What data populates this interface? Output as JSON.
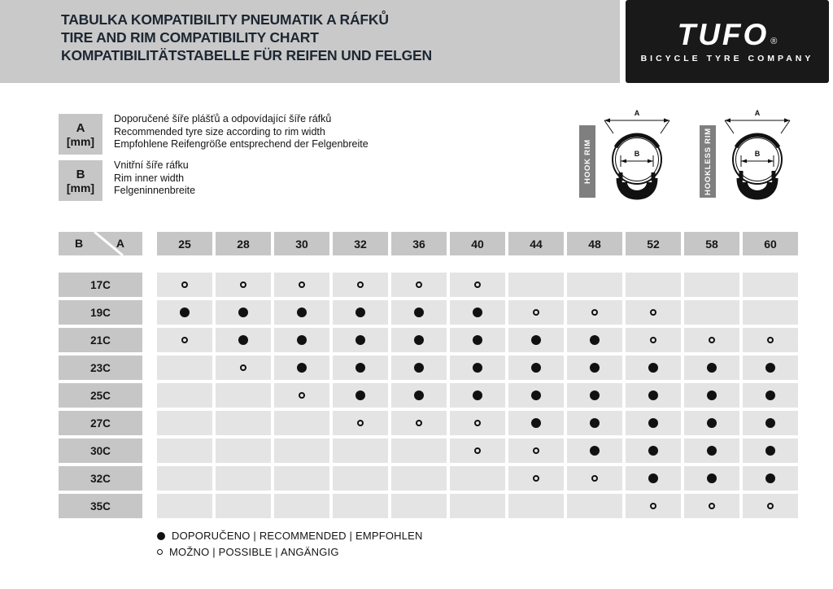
{
  "header": {
    "title_lines": [
      "TABULKA KOMPATIBILITY PNEUMATIK A RÁFKŮ",
      "TIRE AND RIM COMPATIBILITY CHART",
      "KOMPATIBILITÄTSTABELLE FÜR REIFEN UND FELGEN"
    ],
    "logo": {
      "brand": "TUFO",
      "registered": "®",
      "tagline": "BICYCLE TYRE COMPANY"
    }
  },
  "legend": {
    "items": [
      {
        "symbol": "A",
        "unit": "[mm]",
        "lines": [
          "Doporučené šíře plášťů a odpovídající šíře ráfků",
          "Recommended tyre size according to rim width",
          "Empfohlene Reifengröße entsprechend der Felgenbreite"
        ]
      },
      {
        "symbol": "B",
        "unit": "[mm]",
        "lines": [
          "Vnitřní šíře ráfku",
          "Rim inner width",
          "Felgeninnenbreite"
        ]
      }
    ]
  },
  "diagrams": [
    {
      "label": "HOOK RIM",
      "dim_a": "A",
      "dim_b": "B"
    },
    {
      "label": "HOOKLESS RIM",
      "dim_a": "A",
      "dim_b": "B"
    }
  ],
  "table": {
    "corner": {
      "left": "B",
      "right": "A"
    },
    "columns": [
      "25",
      "28",
      "30",
      "32",
      "36",
      "40",
      "44",
      "48",
      "52",
      "58",
      "60"
    ],
    "rows": [
      {
        "label": "17C",
        "cells": [
          "o",
          "o",
          "o",
          "o",
          "o",
          "o",
          "",
          "",
          "",
          "",
          ""
        ]
      },
      {
        "label": "19C",
        "cells": [
          "f",
          "f",
          "f",
          "f",
          "f",
          "f",
          "o",
          "o",
          "o",
          "",
          ""
        ]
      },
      {
        "label": "21C",
        "cells": [
          "o",
          "f",
          "f",
          "f",
          "f",
          "f",
          "f",
          "f",
          "o",
          "o",
          "o"
        ]
      },
      {
        "label": "23C",
        "cells": [
          "",
          "o",
          "f",
          "f",
          "f",
          "f",
          "f",
          "f",
          "f",
          "f",
          "f"
        ]
      },
      {
        "label": "25C",
        "cells": [
          "",
          "",
          "o",
          "f",
          "f",
          "f",
          "f",
          "f",
          "f",
          "f",
          "f"
        ]
      },
      {
        "label": "27C",
        "cells": [
          "",
          "",
          "",
          "o",
          "o",
          "o",
          "f",
          "f",
          "f",
          "f",
          "f"
        ]
      },
      {
        "label": "30C",
        "cells": [
          "",
          "",
          "",
          "",
          "",
          "o",
          "o",
          "f",
          "f",
          "f",
          "f"
        ]
      },
      {
        "label": "32C",
        "cells": [
          "",
          "",
          "",
          "",
          "",
          "",
          "o",
          "o",
          "f",
          "f",
          "f"
        ]
      },
      {
        "label": "35C",
        "cells": [
          "",
          "",
          "",
          "",
          "",
          "",
          "",
          "",
          "o",
          "o",
          "o"
        ]
      }
    ],
    "cell_legend": {
      "f": "recommended",
      "o": "possible",
      "": "empty"
    }
  },
  "footer_legend": {
    "recommended": "DOPORUČENO | RECOMMENDED | EMPFOHLEN",
    "possible": "MOŽNO | POSSIBLE | ANGÄNGIG"
  },
  "colors": {
    "band_gray": "#c9c9c9",
    "box_gray": "#c6c6c6",
    "cell_gray": "#e4e4e4",
    "rim_band_gray": "#7f7f7f",
    "logo_black": "#191919",
    "title_navy": "#1d2733",
    "dot_black": "#111111"
  }
}
